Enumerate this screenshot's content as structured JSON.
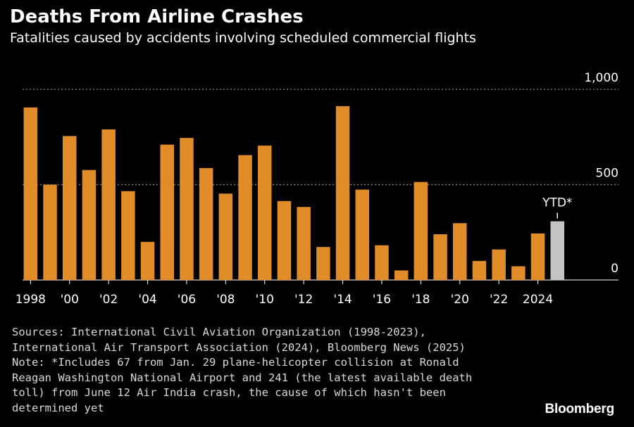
{
  "title": "Deaths From Airline Crashes",
  "subtitle": "Fatalities caused by accidents involving scheduled commercial flights",
  "notes": {
    "lines": [
      "Sources: International Civil Aviation Organization (1998-2023),",
      "International Air Transport Association (2024), Bloomberg News (2025)",
      "Note: *Includes 67 from Jan. 29 plane-helicopter collision at Ronald",
      "Reagan Washington National Airport and 241 (the latest available death",
      "toll) from June 12 Air India crash, the cause of which hasn't been",
      "determined yet"
    ]
  },
  "brand": "Bloomberg",
  "colors": {
    "background": "#000000",
    "bar": "#e08c28",
    "ytd_bar": "#c4c4c4",
    "grid": "#8a8a8a",
    "axis_text": "#ffffff"
  },
  "chart_data": {
    "type": "bar",
    "categories": [
      "1998",
      "1999",
      "2000",
      "2001",
      "2002",
      "2003",
      "2004",
      "2005",
      "2006",
      "2007",
      "2008",
      "2009",
      "2010",
      "2011",
      "2012",
      "2013",
      "2014",
      "2015",
      "2016",
      "2017",
      "2018",
      "2019",
      "2020",
      "2021",
      "2022",
      "2023",
      "2024",
      "2025"
    ],
    "values": [
      905,
      500,
      755,
      577,
      790,
      466,
      200,
      710,
      745,
      587,
      453,
      655,
      705,
      414,
      383,
      173,
      912,
      474,
      182,
      50,
      514,
      240,
      298,
      100,
      160,
      72,
      244,
      308
    ],
    "highlight": {
      "category": "2025",
      "label": "YTD*"
    },
    "xticks": [
      "1998",
      "'00",
      "'02",
      "'04",
      "'06",
      "'08",
      "'10",
      "'12",
      "'14",
      "'16",
      "'18",
      "'20",
      "'22",
      "2024"
    ],
    "xtick_categories": [
      "1998",
      "2000",
      "2002",
      "2004",
      "2006",
      "2008",
      "2010",
      "2012",
      "2014",
      "2016",
      "2018",
      "2020",
      "2022",
      "2024"
    ],
    "yticks": [
      "0",
      "500",
      "1,000"
    ],
    "ytick_values": [
      0,
      500,
      1000
    ],
    "ylim": [
      0,
      1000
    ],
    "grid": true,
    "legend": "none",
    "xlabel": "",
    "ylabel": ""
  }
}
